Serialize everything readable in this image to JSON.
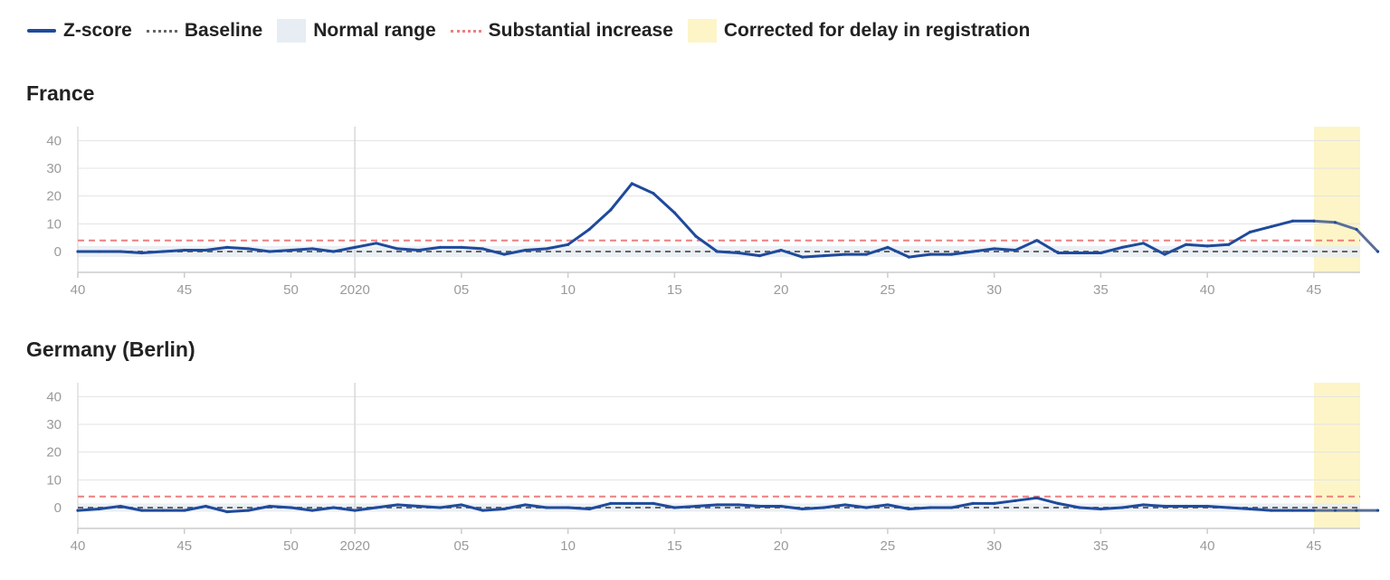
{
  "legend": {
    "items": [
      {
        "label": "Z-score",
        "kind": "line",
        "color": "#1f4a9c"
      },
      {
        "label": "Baseline",
        "kind": "dash",
        "color": "#666666"
      },
      {
        "label": "Normal range",
        "kind": "box",
        "color": "#e7edf3"
      },
      {
        "label": "Substantial increase",
        "kind": "dash",
        "color": "#ee7f7f"
      },
      {
        "label": "Corrected for delay in registration",
        "kind": "box",
        "color": "#fdf5c8"
      }
    ]
  },
  "chart_data": [
    {
      "type": "line",
      "title": "France",
      "xlabel": "",
      "ylabel": "",
      "x_ticks": [
        "40",
        "45",
        "50",
        "2020",
        "05",
        "10",
        "15",
        "20",
        "25",
        "30",
        "35",
        "40",
        "45"
      ],
      "y_ticks": [
        0,
        10,
        20,
        30,
        40
      ],
      "ylim": [
        -7.5,
        45
      ],
      "baseline": 0,
      "substantial_increase": 4,
      "normal_range": [
        -2,
        2
      ],
      "corrected_from_index": 58,
      "series": [
        {
          "name": "Z-score",
          "values": [
            0,
            0,
            0,
            -0.5,
            0,
            0.5,
            0.5,
            1.5,
            1,
            0,
            0.5,
            1,
            0,
            1.5,
            3,
            1,
            0.5,
            1.5,
            1.5,
            1,
            -1,
            0.5,
            1,
            2.5,
            8,
            15,
            24.5,
            21,
            14,
            5.5,
            0,
            -0.5,
            -1.5,
            0.5,
            -2,
            -1.5,
            -1,
            -1,
            1.5,
            -2,
            -1,
            -1,
            0,
            1,
            0.5,
            4,
            -0.5,
            -0.5,
            -0.5,
            1.5,
            3,
            -1,
            2.5,
            2,
            2.5,
            7,
            9,
            11,
            11,
            10.5,
            8,
            0
          ]
        }
      ]
    },
    {
      "type": "line",
      "title": "Germany (Berlin)",
      "xlabel": "",
      "ylabel": "",
      "x_ticks": [
        "40",
        "45",
        "50",
        "2020",
        "05",
        "10",
        "15",
        "20",
        "25",
        "30",
        "35",
        "40",
        "45"
      ],
      "y_ticks": [
        0,
        10,
        20,
        30,
        40
      ],
      "ylim": [
        -7.5,
        45
      ],
      "baseline": 0,
      "substantial_increase": 4,
      "normal_range": [
        -1.5,
        1.5
      ],
      "corrected_from_index": 58,
      "series": [
        {
          "name": "Z-score",
          "values": [
            -1,
            -0.5,
            0.5,
            -1,
            -1,
            -1,
            0.5,
            -1.5,
            -1,
            0.5,
            0,
            -1,
            0,
            -1,
            0,
            1,
            0.5,
            0,
            1,
            -1,
            -0.5,
            1,
            0,
            0,
            -0.5,
            1.5,
            1.5,
            1.5,
            0,
            0.5,
            1,
            1,
            0.5,
            0.5,
            -0.5,
            0,
            1,
            0,
            1,
            -0.5,
            0,
            0,
            1.5,
            1.5,
            2.5,
            3.5,
            1.5,
            0,
            -0.5,
            0,
            1,
            0.5,
            0.5,
            0.5,
            0,
            -0.5,
            -1,
            -1,
            -1,
            -1,
            -1,
            -1
          ]
        }
      ]
    }
  ]
}
